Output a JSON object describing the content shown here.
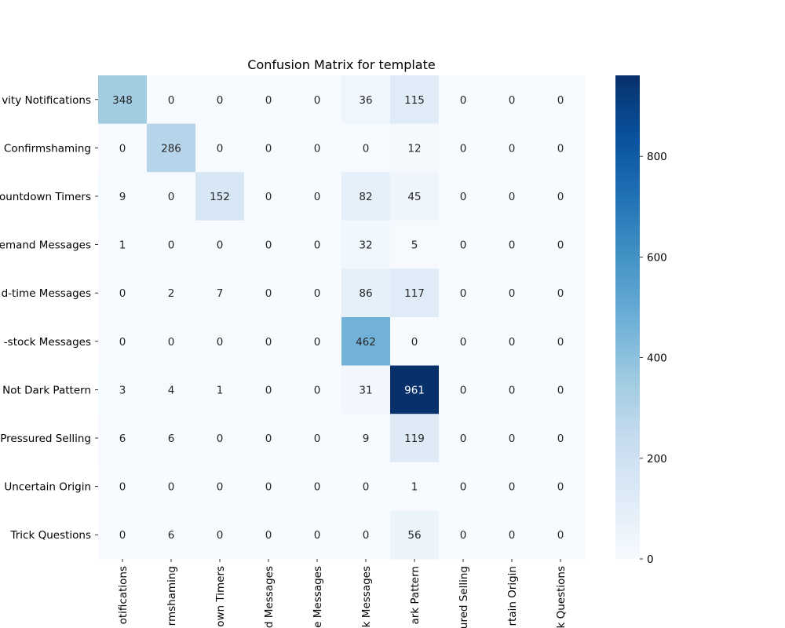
{
  "chart_data": {
    "type": "heatmap",
    "title": "Confusion Matrix for template",
    "row_labels": [
      "vity Notifications",
      "Confirmshaming",
      "ountdown Timers",
      "emand Messages",
      "d-time Messages",
      "-stock Messages",
      "Not Dark Pattern",
      "Pressured Selling",
      "Uncertain Origin",
      "Trick Questions"
    ],
    "col_labels": [
      "otifications",
      "rmshaming",
      "own Timers",
      "d Messages",
      "e Messages",
      "k Messages",
      "ark Pattern",
      "ured Selling",
      "rtain Origin",
      "k Questions"
    ],
    "values": [
      [
        348,
        0,
        0,
        0,
        0,
        36,
        115,
        0,
        0,
        0
      ],
      [
        0,
        286,
        0,
        0,
        0,
        0,
        12,
        0,
        0,
        0
      ],
      [
        9,
        0,
        152,
        0,
        0,
        82,
        45,
        0,
        0,
        0
      ],
      [
        1,
        0,
        0,
        0,
        0,
        32,
        5,
        0,
        0,
        0
      ],
      [
        0,
        2,
        7,
        0,
        0,
        86,
        117,
        0,
        0,
        0
      ],
      [
        0,
        0,
        0,
        0,
        0,
        462,
        0,
        0,
        0,
        0
      ],
      [
        3,
        4,
        1,
        0,
        0,
        31,
        961,
        0,
        0,
        0
      ],
      [
        6,
        6,
        0,
        0,
        0,
        9,
        119,
        0,
        0,
        0
      ],
      [
        0,
        0,
        0,
        0,
        0,
        0,
        1,
        0,
        0,
        0
      ],
      [
        0,
        6,
        0,
        0,
        0,
        0,
        56,
        0,
        0,
        0
      ]
    ],
    "colormap": "Blues",
    "color_range": [
      0,
      961
    ],
    "colorbar_ticks": [
      "0",
      "200",
      "400",
      "600",
      "800"
    ],
    "colorbar_tick_values": [
      0,
      200,
      400,
      600,
      800
    ]
  }
}
